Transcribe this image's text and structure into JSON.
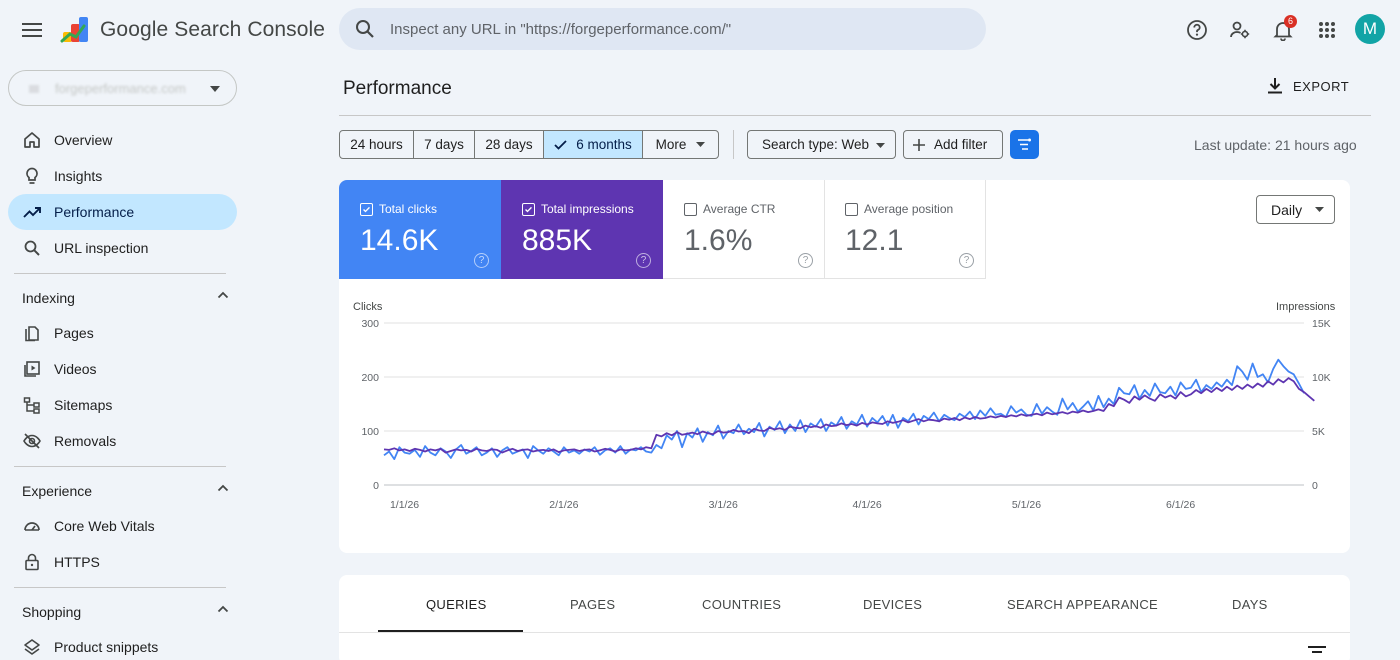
{
  "app": {
    "title": "Google Search Console"
  },
  "search": {
    "placeholder": "Inspect any URL in \"https://forgeperformance.com/\""
  },
  "notifications": {
    "count": "6"
  },
  "user": {
    "avatar_letter": "M"
  },
  "property": {
    "name": "forgeperformance.com"
  },
  "sidebar": {
    "main_items": [
      {
        "label": "Overview",
        "icon": "home-icon"
      },
      {
        "label": "Insights",
        "icon": "lightbulb-icon"
      },
      {
        "label": "Performance",
        "icon": "trending-up-icon"
      },
      {
        "label": "URL inspection",
        "icon": "search-icon"
      }
    ],
    "sections": [
      {
        "label": "Indexing",
        "items": [
          "Pages",
          "Videos",
          "Sitemaps",
          "Removals"
        ]
      },
      {
        "label": "Experience",
        "items": [
          "Core Web Vitals",
          "HTTPS"
        ]
      },
      {
        "label": "Shopping",
        "items": [
          "Product snippets"
        ]
      }
    ]
  },
  "main": {
    "title": "Performance",
    "export_label": "EXPORT",
    "date_ranges": [
      "24 hours",
      "7 days",
      "28 days",
      "6 months",
      "More"
    ],
    "selected_range": "6 months",
    "search_type": "Search type: Web",
    "add_filter": "Add filter",
    "last_update": "Last update: 21 hours ago"
  },
  "metrics": [
    {
      "label": "Total clicks",
      "value": "14.6K",
      "selected": true,
      "color": "#4285f4"
    },
    {
      "label": "Total impressions",
      "value": "885K",
      "selected": true,
      "color": "#673ab7"
    },
    {
      "label": "Average CTR",
      "value": "1.6%",
      "selected": false
    },
    {
      "label": "Average position",
      "value": "12.1",
      "selected": false
    }
  ],
  "granularity": "Daily",
  "chart_data": {
    "type": "line",
    "left_axis_title": "Clicks",
    "right_axis_title": "Impressions",
    "left_ticks": [
      "300",
      "200",
      "100",
      "0"
    ],
    "right_ticks": [
      "15K",
      "10K",
      "5K",
      "0"
    ],
    "left_range": [
      0,
      300
    ],
    "right_range": [
      0,
      15000
    ],
    "x_ticks": [
      "1/1/26",
      "2/1/26",
      "3/1/26",
      "4/1/26",
      "5/1/26",
      "6/1/26"
    ],
    "grid": true,
    "series": [
      {
        "name": "Total clicks",
        "axis": "left",
        "color": "#4285f4",
        "values": [
          55,
          62,
          48,
          70,
          60,
          58,
          65,
          52,
          72,
          60,
          55,
          68,
          62,
          50,
          66,
          74,
          58,
          63,
          70,
          55,
          60,
          68,
          52,
          64,
          70,
          58,
          62,
          66,
          50,
          72,
          64,
          58,
          68,
          62,
          55,
          70,
          60,
          64,
          58,
          66,
          62,
          70,
          56,
          64,
          68,
          60,
          72,
          58,
          66,
          64,
          70,
          62,
          60,
          74,
          68,
          92,
          84,
          100,
          70,
          96,
          88,
          105,
          80,
          98,
          92,
          110,
          86,
          100,
          96,
          112,
          94,
          104,
          98,
          115,
          90,
          108,
          102,
          118,
          96,
          112,
          100,
          120,
          98,
          114,
          108,
          122,
          100,
          116,
          110,
          126,
          104,
          118,
          112,
          130,
          108,
          124,
          116,
          128,
          110,
          130,
          106,
          124,
          118,
          132,
          112,
          128,
          122,
          134,
          118,
          130,
          124,
          120,
          132,
          126,
          136,
          122,
          138,
          128,
          142,
          130,
          132,
          126,
          146,
          134,
          140,
          130,
          128,
          150,
          132,
          144,
          136,
          130,
          160,
          140,
          152,
          136,
          145,
          155,
          138,
          165,
          144,
          160,
          150,
          180,
          170,
          168,
          185,
          160,
          176,
          165,
          188,
          172,
          170,
          182,
          166,
          190,
          178,
          180,
          195,
          172,
          185,
          178,
          190,
          182,
          195,
          185,
          220,
          210,
          195,
          225,
          200,
          205,
          190,
          215,
          232,
          220,
          210,
          205,
          188,
          170
        ]
      },
      {
        "name": "Total impressions",
        "axis": "right",
        "color": "#5e35b1",
        "values": [
          3300,
          3250,
          3400,
          3200,
          3300,
          3150,
          3350,
          3250,
          3100,
          3300,
          3200,
          3350,
          3000,
          3150,
          3300,
          3200,
          3250,
          3100,
          3350,
          3200,
          3150,
          3300,
          3250,
          3000,
          3200,
          3350,
          3150,
          3250,
          3300,
          3100,
          3200,
          3250,
          3150,
          3300,
          3050,
          3200,
          3250,
          3300,
          3150,
          3250,
          3300,
          3100,
          3200,
          3350,
          3250,
          3100,
          3300,
          3200,
          3250,
          3400,
          3300,
          3500,
          3400,
          4650,
          4500,
          4800,
          4600,
          4900,
          4650,
          4750,
          4850,
          4700,
          4950,
          4800,
          4700,
          5000,
          4850,
          4900,
          5100,
          4950,
          5000,
          4800,
          5200,
          5050,
          5000,
          5300,
          5150,
          5250,
          5100,
          5400,
          5300,
          5250,
          5500,
          5350,
          5450,
          5300,
          5600,
          5450,
          5500,
          5700,
          5550,
          5650,
          5500,
          5750,
          5600,
          5800,
          5700,
          5650,
          5900,
          5750,
          5850,
          6000,
          5800,
          5950,
          6100,
          5900,
          6050,
          6000,
          5900,
          6150,
          6050,
          6200,
          6000,
          6250,
          6100,
          6300,
          6150,
          6200,
          6350,
          6250,
          6400,
          6300,
          6450,
          6350,
          6550,
          6400,
          6500,
          6600,
          6450,
          6700,
          6550,
          6650,
          6750,
          6600,
          6800,
          6700,
          6900,
          6750,
          6850,
          7000,
          6850,
          7500,
          7300,
          8100,
          7900,
          7600,
          8200,
          7900,
          8300,
          8000,
          7800,
          8400,
          8100,
          8300,
          8000,
          8600,
          8200,
          8400,
          8800,
          8500,
          8900,
          8600,
          9000,
          8700,
          9100,
          8800,
          9200,
          8900,
          9300,
          9000,
          9400,
          9100,
          9600,
          9300,
          9800,
          9500,
          9900,
          9600,
          8900,
          8600,
          8200,
          7800
        ]
      }
    ]
  },
  "tabs": [
    "QUERIES",
    "PAGES",
    "COUNTRIES",
    "DEVICES",
    "SEARCH APPEARANCE",
    "DAYS"
  ],
  "active_tab": "QUERIES"
}
